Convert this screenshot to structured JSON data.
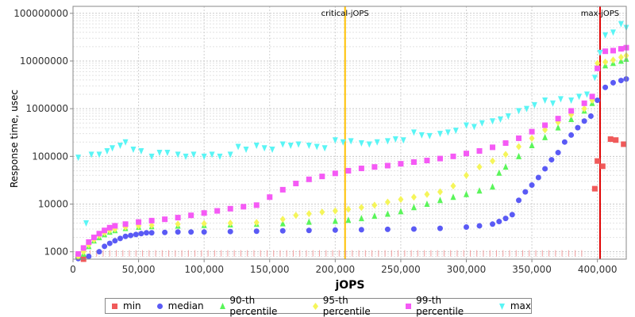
{
  "chart_data": {
    "type": "scatter",
    "xlabel": "jOPS",
    "ylabel": "Response time, usec",
    "xlim": [
      0,
      422000
    ],
    "ylim": [
      700,
      140000000
    ],
    "yscale": "log",
    "x_ticks": [
      {
        "value": 0,
        "label": "0"
      },
      {
        "value": 50000,
        "label": "50,000"
      },
      {
        "value": 100000,
        "label": "100,000"
      },
      {
        "value": 150000,
        "label": "150,000"
      },
      {
        "value": 200000,
        "label": "200,000"
      },
      {
        "value": 250000,
        "label": "250,000"
      },
      {
        "value": 300000,
        "label": "300,000"
      },
      {
        "value": 350000,
        "label": "350,000"
      },
      {
        "value": 400000,
        "label": "400,000"
      }
    ],
    "y_ticks": [
      {
        "value": 1000,
        "label": "1000"
      },
      {
        "value": 10000,
        "label": "10000"
      },
      {
        "value": 100000,
        "label": "100000"
      },
      {
        "value": 1000000,
        "label": "1000000"
      },
      {
        "value": 10000000,
        "label": "10000000"
      },
      {
        "value": 100000000,
        "label": "100000000"
      }
    ],
    "grid": true,
    "markers": [
      {
        "name": "critical-jOPS",
        "x": 207500,
        "color": "#ffc000"
      },
      {
        "name": "max-jOPS",
        "x": 402000,
        "color": "#e00000"
      }
    ],
    "legend_position": "bottom",
    "series": [
      {
        "name": "min",
        "color": "#f05a5a",
        "shape": "square",
        "points": [
          [
            4000,
            800
          ],
          [
            8000,
            700
          ],
          [
            398000,
            21000
          ],
          [
            400000,
            80000
          ],
          [
            404000,
            62000
          ],
          [
            410000,
            230000
          ],
          [
            414000,
            220000
          ],
          [
            420000,
            180000
          ]
        ]
      },
      {
        "name": "median",
        "color": "#5a5af5",
        "shape": "circle",
        "points": [
          [
            4000,
            720
          ],
          [
            12000,
            800
          ],
          [
            20000,
            1000
          ],
          [
            24000,
            1300
          ],
          [
            28000,
            1500
          ],
          [
            32000,
            1700
          ],
          [
            36000,
            1900
          ],
          [
            40000,
            2100
          ],
          [
            44000,
            2200
          ],
          [
            48000,
            2300
          ],
          [
            52000,
            2400
          ],
          [
            56000,
            2500
          ],
          [
            60000,
            2500
          ],
          [
            70000,
            2550
          ],
          [
            80000,
            2600
          ],
          [
            90000,
            2600
          ],
          [
            100000,
            2600
          ],
          [
            120000,
            2650
          ],
          [
            140000,
            2700
          ],
          [
            160000,
            2750
          ],
          [
            180000,
            2800
          ],
          [
            200000,
            2850
          ],
          [
            220000,
            2900
          ],
          [
            240000,
            2950
          ],
          [
            260000,
            3000
          ],
          [
            280000,
            3100
          ],
          [
            300000,
            3300
          ],
          [
            310000,
            3500
          ],
          [
            320000,
            3800
          ],
          [
            325000,
            4300
          ],
          [
            330000,
            5000
          ],
          [
            335000,
            6000
          ],
          [
            340000,
            12000
          ],
          [
            345000,
            18000
          ],
          [
            350000,
            25000
          ],
          [
            355000,
            36000
          ],
          [
            360000,
            55000
          ],
          [
            365000,
            85000
          ],
          [
            370000,
            120000
          ],
          [
            375000,
            200000
          ],
          [
            380000,
            280000
          ],
          [
            385000,
            400000
          ],
          [
            390000,
            550000
          ],
          [
            395000,
            700000
          ],
          [
            400000,
            1500000
          ],
          [
            406000,
            2800000
          ],
          [
            412000,
            3500000
          ],
          [
            418000,
            3900000
          ],
          [
            422000,
            4200000
          ]
        ]
      },
      {
        "name": "90-th percentile",
        "color": "#5af55a",
        "shape": "triangle",
        "points": [
          [
            4000,
            800
          ],
          [
            8000,
            900
          ],
          [
            12000,
            1300
          ],
          [
            16000,
            1700
          ],
          [
            20000,
            2000
          ],
          [
            24000,
            2300
          ],
          [
            28000,
            2600
          ],
          [
            32000,
            2800
          ],
          [
            40000,
            3100
          ],
          [
            50000,
            3300
          ],
          [
            60000,
            3400
          ],
          [
            80000,
            3500
          ],
          [
            100000,
            3600
          ],
          [
            120000,
            3700
          ],
          [
            140000,
            3800
          ],
          [
            160000,
            3900
          ],
          [
            180000,
            4200
          ],
          [
            200000,
            4400
          ],
          [
            210000,
            4600
          ],
          [
            220000,
            5000
          ],
          [
            230000,
            5600
          ],
          [
            240000,
            6200
          ],
          [
            250000,
            7000
          ],
          [
            260000,
            8500
          ],
          [
            270000,
            10000
          ],
          [
            280000,
            12000
          ],
          [
            290000,
            14000
          ],
          [
            300000,
            16000
          ],
          [
            310000,
            19000
          ],
          [
            320000,
            23000
          ],
          [
            325000,
            45000
          ],
          [
            330000,
            60000
          ],
          [
            340000,
            100000
          ],
          [
            350000,
            170000
          ],
          [
            360000,
            250000
          ],
          [
            370000,
            400000
          ],
          [
            380000,
            600000
          ],
          [
            390000,
            900000
          ],
          [
            396000,
            1300000
          ],
          [
            400000,
            8000000
          ],
          [
            406000,
            8000000
          ],
          [
            412000,
            9000000
          ],
          [
            418000,
            10000000
          ],
          [
            422000,
            11000000
          ]
        ]
      },
      {
        "name": "95-th percentile",
        "color": "#f5f55a",
        "shape": "diamond",
        "points": [
          [
            4000,
            800
          ],
          [
            8000,
            1000
          ],
          [
            12000,
            1400
          ],
          [
            16000,
            1800
          ],
          [
            20000,
            2200
          ],
          [
            24000,
            2500
          ],
          [
            28000,
            2800
          ],
          [
            32000,
            3000
          ],
          [
            40000,
            3300
          ],
          [
            50000,
            3500
          ],
          [
            60000,
            3600
          ],
          [
            80000,
            3800
          ],
          [
            100000,
            3900
          ],
          [
            120000,
            4000
          ],
          [
            140000,
            4100
          ],
          [
            160000,
            4800
          ],
          [
            170000,
            5800
          ],
          [
            180000,
            6300
          ],
          [
            190000,
            6800
          ],
          [
            200000,
            7200
          ],
          [
            210000,
            7800
          ],
          [
            220000,
            8500
          ],
          [
            230000,
            9500
          ],
          [
            240000,
            11000
          ],
          [
            250000,
            12500
          ],
          [
            260000,
            14000
          ],
          [
            270000,
            16000
          ],
          [
            280000,
            18000
          ],
          [
            290000,
            24000
          ],
          [
            300000,
            40000
          ],
          [
            310000,
            60000
          ],
          [
            320000,
            80000
          ],
          [
            330000,
            110000
          ],
          [
            340000,
            160000
          ],
          [
            350000,
            240000
          ],
          [
            360000,
            360000
          ],
          [
            370000,
            520000
          ],
          [
            380000,
            750000
          ],
          [
            390000,
            1000000
          ],
          [
            396000,
            1500000
          ],
          [
            400000,
            9000000
          ],
          [
            406000,
            9500000
          ],
          [
            412000,
            10500000
          ],
          [
            418000,
            12000000
          ],
          [
            422000,
            13000000
          ]
        ]
      },
      {
        "name": "99-th percentile",
        "color": "#f55af5",
        "shape": "square",
        "points": [
          [
            4000,
            900
          ],
          [
            8000,
            1200
          ],
          [
            12000,
            1600
          ],
          [
            16000,
            2000
          ],
          [
            20000,
            2400
          ],
          [
            24000,
            2800
          ],
          [
            28000,
            3200
          ],
          [
            32000,
            3500
          ],
          [
            40000,
            3800
          ],
          [
            50000,
            4200
          ],
          [
            60000,
            4500
          ],
          [
            70000,
            4800
          ],
          [
            80000,
            5200
          ],
          [
            90000,
            5800
          ],
          [
            100000,
            6500
          ],
          [
            110000,
            7200
          ],
          [
            120000,
            8000
          ],
          [
            130000,
            8800
          ],
          [
            140000,
            9500
          ],
          [
            150000,
            14000
          ],
          [
            160000,
            20000
          ],
          [
            170000,
            27000
          ],
          [
            180000,
            33000
          ],
          [
            190000,
            38000
          ],
          [
            200000,
            44000
          ],
          [
            210000,
            50000
          ],
          [
            220000,
            56000
          ],
          [
            230000,
            60000
          ],
          [
            240000,
            64000
          ],
          [
            250000,
            70000
          ],
          [
            260000,
            76000
          ],
          [
            270000,
            82000
          ],
          [
            280000,
            90000
          ],
          [
            290000,
            100000
          ],
          [
            300000,
            115000
          ],
          [
            310000,
            130000
          ],
          [
            320000,
            155000
          ],
          [
            330000,
            190000
          ],
          [
            340000,
            240000
          ],
          [
            350000,
            330000
          ],
          [
            360000,
            450000
          ],
          [
            370000,
            620000
          ],
          [
            380000,
            900000
          ],
          [
            390000,
            1300000
          ],
          [
            396000,
            1800000
          ],
          [
            400000,
            7000000
          ],
          [
            406000,
            16000000
          ],
          [
            412000,
            16500000
          ],
          [
            418000,
            18000000
          ],
          [
            422000,
            19000000
          ]
        ]
      },
      {
        "name": "max",
        "color": "#5af5f5",
        "shape": "triangle-down",
        "points": [
          [
            4000,
            95000
          ],
          [
            10000,
            4000
          ],
          [
            14000,
            110000
          ],
          [
            20000,
            110000
          ],
          [
            26000,
            130000
          ],
          [
            30000,
            150000
          ],
          [
            36000,
            170000
          ],
          [
            40000,
            200000
          ],
          [
            46000,
            140000
          ],
          [
            52000,
            130000
          ],
          [
            60000,
            100000
          ],
          [
            66000,
            120000
          ],
          [
            72000,
            120000
          ],
          [
            80000,
            110000
          ],
          [
            86000,
            100000
          ],
          [
            92000,
            110000
          ],
          [
            100000,
            100000
          ],
          [
            106000,
            110000
          ],
          [
            112000,
            100000
          ],
          [
            120000,
            110000
          ],
          [
            126000,
            160000
          ],
          [
            132000,
            140000
          ],
          [
            140000,
            170000
          ],
          [
            146000,
            150000
          ],
          [
            152000,
            140000
          ],
          [
            160000,
            180000
          ],
          [
            166000,
            170000
          ],
          [
            172000,
            180000
          ],
          [
            180000,
            170000
          ],
          [
            186000,
            160000
          ],
          [
            192000,
            150000
          ],
          [
            200000,
            220000
          ],
          [
            206000,
            200000
          ],
          [
            212000,
            210000
          ],
          [
            220000,
            190000
          ],
          [
            226000,
            180000
          ],
          [
            232000,
            200000
          ],
          [
            240000,
            210000
          ],
          [
            246000,
            230000
          ],
          [
            252000,
            220000
          ],
          [
            260000,
            320000
          ],
          [
            266000,
            280000
          ],
          [
            272000,
            270000
          ],
          [
            280000,
            300000
          ],
          [
            286000,
            320000
          ],
          [
            292000,
            350000
          ],
          [
            300000,
            450000
          ],
          [
            306000,
            420000
          ],
          [
            312000,
            500000
          ],
          [
            320000,
            550000
          ],
          [
            326000,
            600000
          ],
          [
            332000,
            700000
          ],
          [
            340000,
            900000
          ],
          [
            346000,
            1000000
          ],
          [
            352000,
            1200000
          ],
          [
            360000,
            1500000
          ],
          [
            366000,
            1300000
          ],
          [
            372000,
            1600000
          ],
          [
            380000,
            1500000
          ],
          [
            386000,
            1800000
          ],
          [
            392000,
            2000000
          ],
          [
            398000,
            4500000
          ],
          [
            402000,
            15000000
          ],
          [
            406000,
            35000000
          ],
          [
            412000,
            40000000
          ],
          [
            418000,
            60000000
          ],
          [
            422000,
            50000000
          ]
        ]
      }
    ]
  }
}
